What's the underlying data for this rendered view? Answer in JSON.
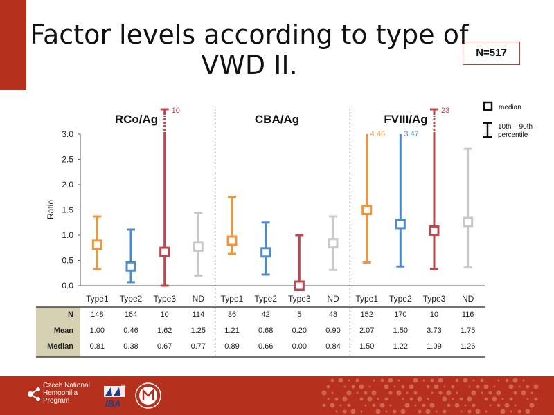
{
  "slide": {
    "title": "Factor levels according to type of VWD II.",
    "badge": "N=517"
  },
  "legend": {
    "median_label": "median",
    "range_label_line1": "10th – 90th",
    "range_label_line2": "percentile"
  },
  "table": {
    "row_labels": [
      "N",
      "Mean",
      "Median"
    ]
  },
  "footer": {
    "org_line1": "Czech National",
    "org_line2": "Hemophilia",
    "org_line3": "Program",
    "iba": "IBA",
    "mu": "MU"
  },
  "colors": {
    "accent": "#b5311e",
    "Type1": "#f0943a",
    "Type2": "#4a8ccb",
    "Type3": "#c0464e",
    "ND": "#c9c9c9"
  },
  "chart_data": {
    "type": "box",
    "ylabel": "Ratio",
    "ylim": [
      0,
      3.0
    ],
    "yticks": [
      "0.0",
      "0.5",
      "1.0",
      "1.5",
      "2.0",
      "2.5",
      "3.0"
    ],
    "groups": [
      {
        "name": "RCo/Ag",
        "series": [
          {
            "category": "Type1",
            "p10": 0.33,
            "median": 0.81,
            "p90": 1.37,
            "N": "148",
            "mean": "1.00",
            "median_label": "0.81"
          },
          {
            "category": "Type2",
            "p10": 0.07,
            "median": 0.38,
            "p90": 1.11,
            "N": "164",
            "mean": "0.46",
            "median_label": "0.38"
          },
          {
            "category": "Type3",
            "p10": 0.0,
            "median": 0.67,
            "p90": 10,
            "annotation": "10",
            "N": "10",
            "mean": "1.62",
            "median_label": "0.67"
          },
          {
            "category": "ND",
            "p10": 0.2,
            "median": 0.77,
            "p90": 1.44,
            "N": "114",
            "mean": "1.25",
            "median_label": "0.77"
          }
        ]
      },
      {
        "name": "CBA/Ag",
        "series": [
          {
            "category": "Type1",
            "p10": 0.63,
            "median": 0.89,
            "p90": 1.76,
            "N": "36",
            "mean": "1.21",
            "median_label": "0.89"
          },
          {
            "category": "Type2",
            "p10": 0.22,
            "median": 0.66,
            "p90": 1.25,
            "N": "42",
            "mean": "0.68",
            "median_label": "0.66"
          },
          {
            "category": "Type3",
            "p10": 0.0,
            "median": 0.0,
            "p90": 1.0,
            "N": "5",
            "mean": "0.20",
            "median_label": "0.00"
          },
          {
            "category": "ND",
            "p10": 0.31,
            "median": 0.84,
            "p90": 1.37,
            "N": "48",
            "mean": "0.90",
            "median_label": "0.84"
          }
        ]
      },
      {
        "name": "FVIII/Ag",
        "series": [
          {
            "category": "Type1",
            "p10": 0.46,
            "median": 1.5,
            "p90": 4.46,
            "annotation": "4.46",
            "N": "152",
            "mean": "2.07",
            "median_label": "1.50"
          },
          {
            "category": "Type2",
            "p10": 0.38,
            "median": 1.22,
            "p90": 3.47,
            "annotation": "3.47",
            "N": "170",
            "mean": "1.50",
            "median_label": "1.22"
          },
          {
            "category": "Type3",
            "p10": 0.33,
            "median": 1.09,
            "p90": 23,
            "annotation": "23",
            "N": "10",
            "mean": "3.73",
            "median_label": "1.09"
          },
          {
            "category": "ND",
            "p10": 0.36,
            "median": 1.26,
            "p90": 2.71,
            "N": "116",
            "mean": "1.75",
            "median_label": "1.26"
          }
        ]
      }
    ]
  }
}
